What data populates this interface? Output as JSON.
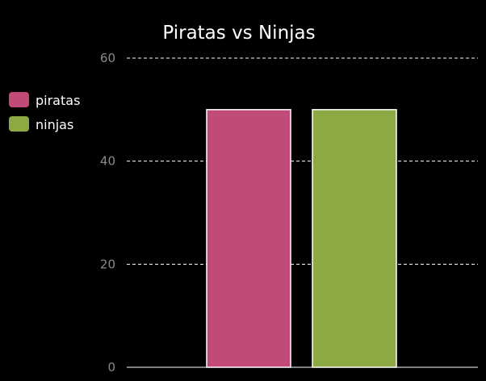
{
  "chart_data": {
    "type": "bar",
    "title": "Piratas vs Ninjas",
    "xlabel": "",
    "ylabel": "",
    "ylim": [
      0,
      60
    ],
    "yticks": [
      0,
      20,
      40,
      60
    ],
    "grid": true,
    "legend_position": "left",
    "series": [
      {
        "name": "piratas",
        "value": 50,
        "color": "#c24a78"
      },
      {
        "name": "ninjas",
        "value": 50,
        "color": "#8ca944"
      }
    ]
  },
  "colors": {
    "background": "#000000",
    "grid": "#ffffff",
    "bar_border": "#ffffff",
    "tick_text": "#8a8a8a",
    "text": "#ffffff"
  }
}
